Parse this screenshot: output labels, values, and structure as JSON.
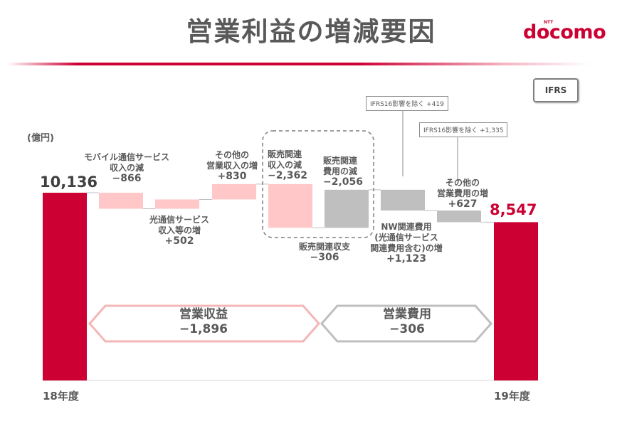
{
  "title": "営業利益の増減要因",
  "logo": {
    "text": "docomo",
    "sub": "NTT"
  },
  "ifrs_tag": "IFRS",
  "unit_label": "(億円)",
  "colors": {
    "brand": "#cc0033",
    "revenue_neg": "#ffc7c7",
    "revenue_pos": "#ffc7c7",
    "cost": "#bfbfbf",
    "dashed": "#7f7f7f"
  },
  "chart_data": {
    "type": "waterfall",
    "start": {
      "label": "18年度",
      "value": 10136,
      "display": "10,136"
    },
    "end": {
      "label": "19年度",
      "value": 8547,
      "display": "8,547"
    },
    "steps": [
      {
        "label": "モバイル通信サービス\n収入の減",
        "delta": -866,
        "display": "−866",
        "group": "revenue"
      },
      {
        "label": "光通信サービス\n収入等の増",
        "delta": 502,
        "display": "+502",
        "group": "revenue"
      },
      {
        "label": "その他の\n営業収入の増",
        "delta": 830,
        "display": "+830",
        "group": "revenue"
      },
      {
        "label": "販売関連\n収入の減",
        "delta": -2362,
        "display": "−2,362",
        "group": "revenue"
      },
      {
        "label": "販売関連\n費用の減",
        "delta": 2056,
        "display": "−2,056",
        "group": "cost"
      },
      {
        "label": "NW関連費用\n(光通信サービス\n関連費用含む)の増",
        "delta": -1123,
        "display": "+1,123",
        "group": "cost"
      },
      {
        "label": "その他の\n営業費用の増",
        "delta": -627,
        "display": "+627",
        "group": "cost"
      }
    ],
    "sales_related_net": {
      "label": "販売関連収支",
      "display": "−306"
    },
    "callouts": [
      {
        "text": "IFRS16影響を除く +419",
        "target_step": 5
      },
      {
        "text": "IFRS16影響を除く +1,335",
        "target_step": 6
      }
    ],
    "summary": [
      {
        "label": "営業収益",
        "display": "−1,896"
      },
      {
        "label": "営業費用",
        "display": "−306"
      }
    ]
  }
}
